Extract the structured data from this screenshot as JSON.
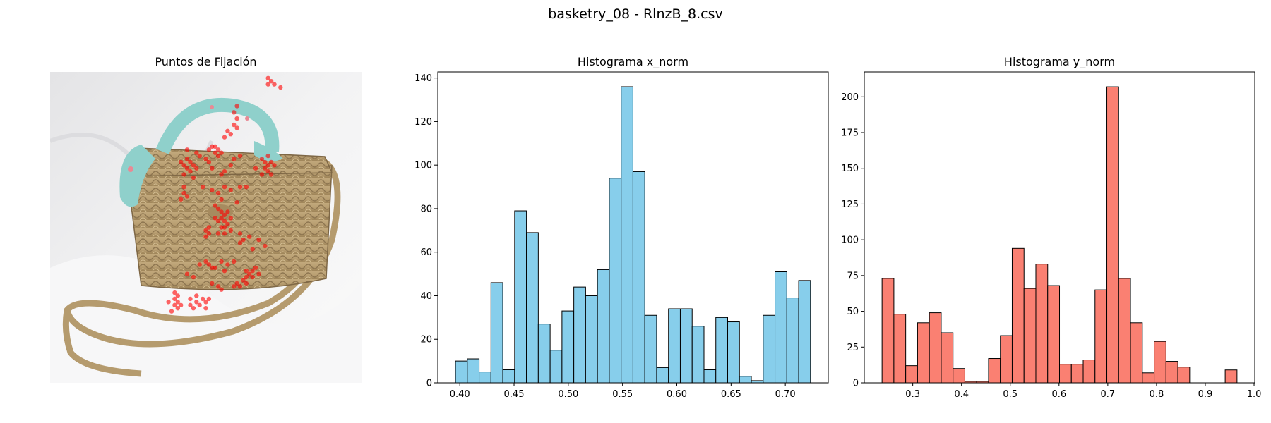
{
  "figure": {
    "title": "basketry_08 - RlnzB_8.csv"
  },
  "panels": {
    "image": {
      "title": "Puntos de Fijación"
    },
    "x_hist": {
      "title": "Histograma x_norm"
    },
    "y_hist": {
      "title": "Histograma y_norm"
    }
  },
  "chart_data": [
    {
      "type": "scatter",
      "title": "Puntos de Fijación",
      "description_overlay": true,
      "color": "#ff0000",
      "points": [
        [
          0.7,
          0.02
        ],
        [
          0.71,
          0.03
        ],
        [
          0.72,
          0.04
        ],
        [
          0.74,
          0.05
        ],
        [
          0.7,
          0.04
        ],
        [
          0.59,
          0.13
        ],
        [
          0.6,
          0.15
        ],
        [
          0.59,
          0.17
        ],
        [
          0.6,
          0.18
        ],
        [
          0.57,
          0.19
        ],
        [
          0.58,
          0.2
        ],
        [
          0.56,
          0.21
        ],
        [
          0.6,
          0.11
        ],
        [
          0.53,
          0.24
        ],
        [
          0.54,
          0.25
        ],
        [
          0.52,
          0.24
        ],
        [
          0.55,
          0.26
        ],
        [
          0.53,
          0.26
        ],
        [
          0.51,
          0.25
        ],
        [
          0.54,
          0.27
        ],
        [
          0.47,
          0.26
        ],
        [
          0.48,
          0.27
        ],
        [
          0.44,
          0.25
        ],
        [
          0.44,
          0.28
        ],
        [
          0.45,
          0.29
        ],
        [
          0.43,
          0.3
        ],
        [
          0.46,
          0.3
        ],
        [
          0.44,
          0.31
        ],
        [
          0.42,
          0.29
        ],
        [
          0.47,
          0.31
        ],
        [
          0.45,
          0.32
        ],
        [
          0.43,
          0.33
        ],
        [
          0.46,
          0.34
        ],
        [
          0.5,
          0.28
        ],
        [
          0.51,
          0.29
        ],
        [
          0.52,
          0.31
        ],
        [
          0.55,
          0.33
        ],
        [
          0.56,
          0.32
        ],
        [
          0.58,
          0.3
        ],
        [
          0.59,
          0.28
        ],
        [
          0.61,
          0.27
        ],
        [
          0.68,
          0.28
        ],
        [
          0.69,
          0.29
        ],
        [
          0.7,
          0.3
        ],
        [
          0.71,
          0.29
        ],
        [
          0.72,
          0.3
        ],
        [
          0.69,
          0.31
        ],
        [
          0.7,
          0.32
        ],
        [
          0.68,
          0.33
        ],
        [
          0.71,
          0.33
        ],
        [
          0.7,
          0.27
        ],
        [
          0.66,
          0.31
        ],
        [
          0.43,
          0.39
        ],
        [
          0.44,
          0.4
        ],
        [
          0.42,
          0.41
        ],
        [
          0.43,
          0.37
        ],
        [
          0.49,
          0.37
        ],
        [
          0.52,
          0.38
        ],
        [
          0.54,
          0.39
        ],
        [
          0.56,
          0.37
        ],
        [
          0.58,
          0.38
        ],
        [
          0.61,
          0.37
        ],
        [
          0.63,
          0.37
        ],
        [
          0.55,
          0.41
        ],
        [
          0.6,
          0.42
        ],
        [
          0.53,
          0.43
        ],
        [
          0.54,
          0.44
        ],
        [
          0.55,
          0.45
        ],
        [
          0.56,
          0.46
        ],
        [
          0.57,
          0.45
        ],
        [
          0.55,
          0.47
        ],
        [
          0.56,
          0.48
        ],
        [
          0.54,
          0.48
        ],
        [
          0.57,
          0.49
        ],
        [
          0.55,
          0.5
        ],
        [
          0.56,
          0.5
        ],
        [
          0.58,
          0.47
        ],
        [
          0.53,
          0.47
        ],
        [
          0.56,
          0.52
        ],
        [
          0.54,
          0.52
        ],
        [
          0.58,
          0.51
        ],
        [
          0.5,
          0.51
        ],
        [
          0.51,
          0.52
        ],
        [
          0.5,
          0.53
        ],
        [
          0.51,
          0.5
        ],
        [
          0.61,
          0.52
        ],
        [
          0.62,
          0.54
        ],
        [
          0.64,
          0.53
        ],
        [
          0.67,
          0.54
        ],
        [
          0.69,
          0.56
        ],
        [
          0.65,
          0.57
        ],
        [
          0.61,
          0.55
        ],
        [
          0.5,
          0.61
        ],
        [
          0.51,
          0.62
        ],
        [
          0.53,
          0.63
        ],
        [
          0.55,
          0.61
        ],
        [
          0.57,
          0.62
        ],
        [
          0.59,
          0.61
        ],
        [
          0.52,
          0.63
        ],
        [
          0.48,
          0.62
        ],
        [
          0.56,
          0.64
        ],
        [
          0.63,
          0.64
        ],
        [
          0.64,
          0.65
        ],
        [
          0.65,
          0.64
        ],
        [
          0.66,
          0.63
        ],
        [
          0.67,
          0.65
        ],
        [
          0.65,
          0.66
        ],
        [
          0.63,
          0.66
        ],
        [
          0.62,
          0.67
        ],
        [
          0.6,
          0.68
        ],
        [
          0.61,
          0.69
        ],
        [
          0.63,
          0.68
        ],
        [
          0.59,
          0.69
        ],
        [
          0.52,
          0.68
        ],
        [
          0.54,
          0.69
        ],
        [
          0.55,
          0.7
        ],
        [
          0.46,
          0.66
        ],
        [
          0.44,
          0.65
        ],
        [
          0.4,
          0.73
        ],
        [
          0.41,
          0.74
        ],
        [
          0.42,
          0.75
        ],
        [
          0.4,
          0.75
        ],
        [
          0.41,
          0.76
        ],
        [
          0.39,
          0.77
        ],
        [
          0.41,
          0.72
        ],
        [
          0.45,
          0.73
        ],
        [
          0.47,
          0.74
        ],
        [
          0.49,
          0.73
        ],
        [
          0.5,
          0.74
        ],
        [
          0.48,
          0.75
        ],
        [
          0.46,
          0.76
        ],
        [
          0.5,
          0.76
        ],
        [
          0.51,
          0.73
        ],
        [
          0.47,
          0.72
        ],
        [
          0.45,
          0.75
        ],
        [
          0.38,
          0.74
        ],
        [
          0.4,
          0.71
        ]
      ]
    },
    {
      "type": "bar",
      "title": "Histograma x_norm",
      "color": "#87ceeb",
      "edgecolor": "#000000",
      "bins": 30,
      "bin_start": 0.396,
      "bin_width": 0.010907,
      "values": [
        10,
        11,
        5,
        46,
        6,
        79,
        69,
        27,
        15,
        33,
        44,
        40,
        52,
        94,
        136,
        97,
        31,
        7,
        34,
        34,
        26,
        6,
        30,
        28,
        3,
        1,
        31,
        51,
        39,
        47
      ],
      "xlim": [
        0.3797,
        0.7396
      ],
      "ylim": [
        0,
        142.8
      ],
      "xticks": [
        0.4,
        0.45,
        0.5,
        0.55,
        0.6,
        0.65,
        0.7
      ],
      "xtick_labels": [
        "0.40",
        "0.45",
        "0.50",
        "0.55",
        "0.60",
        "0.65",
        "0.70"
      ],
      "yticks": [
        0,
        20,
        40,
        60,
        80,
        100,
        120,
        140
      ],
      "ytick_labels": [
        "0",
        "20",
        "40",
        "60",
        "80",
        "100",
        "120",
        "140"
      ]
    },
    {
      "type": "bar",
      "title": "Histograma y_norm",
      "color": "#fa8072",
      "edgecolor": "#000000",
      "bins": 30,
      "bin_start": 0.237,
      "bin_width": 0.024267,
      "values": [
        73,
        48,
        12,
        42,
        49,
        35,
        10,
        1,
        1,
        17,
        33,
        94,
        66,
        83,
        68,
        13,
        13,
        16,
        65,
        207,
        73,
        42,
        7,
        29,
        15,
        11,
        0,
        0,
        0,
        9
      ],
      "xlim": [
        0.2006,
        1.0014
      ],
      "ylim": [
        0,
        217.4
      ],
      "xticks": [
        0.3,
        0.4,
        0.5,
        0.6,
        0.7,
        0.8,
        0.9,
        1.0
      ],
      "xtick_labels": [
        "0.3",
        "0.4",
        "0.5",
        "0.6",
        "0.7",
        "0.8",
        "0.9",
        "1.0"
      ],
      "yticks": [
        0,
        25,
        50,
        75,
        100,
        125,
        150,
        175,
        200
      ],
      "ytick_labels": [
        "0",
        "25",
        "50",
        "75",
        "100",
        "125",
        "150",
        "175",
        "200"
      ]
    }
  ]
}
